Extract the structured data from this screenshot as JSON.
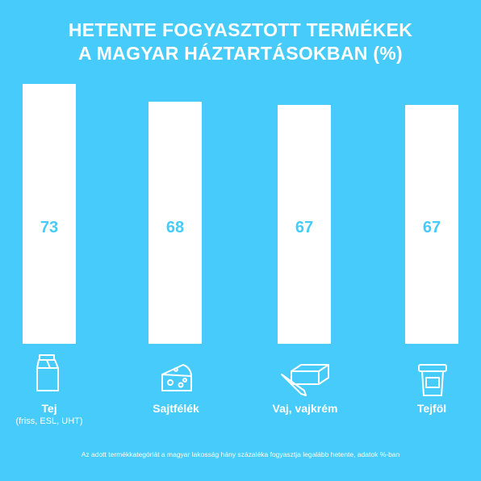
{
  "chart_data": {
    "type": "bar",
    "title_lines": [
      "HETENTE FOGYASZTOTT TERMÉKEK",
      "A MAGYAR HÁZTARTÁSOKBAN (%)"
    ],
    "categories": [
      "Tej",
      "Sajtfélék",
      "Vaj, vajkrém",
      "Tejföl"
    ],
    "category_sublabels": [
      "(friss, ESL, UHT)",
      "",
      "",
      ""
    ],
    "category_icons": [
      "milk-carton-icon",
      "cheese-icon",
      "butter-icon",
      "sour-cream-cup-icon"
    ],
    "values": [
      73,
      68,
      67,
      67
    ],
    "ylim": [
      0,
      73
    ],
    "grid": false,
    "footnote": "Az adott termékkategóriát a magyar lakosság hány százaléka fogyasztja legalább hetente, adatok %-ban"
  },
  "colors": {
    "background": "#46cbfa",
    "bar": "#ffffff",
    "value_text": "#46cbfa"
  }
}
